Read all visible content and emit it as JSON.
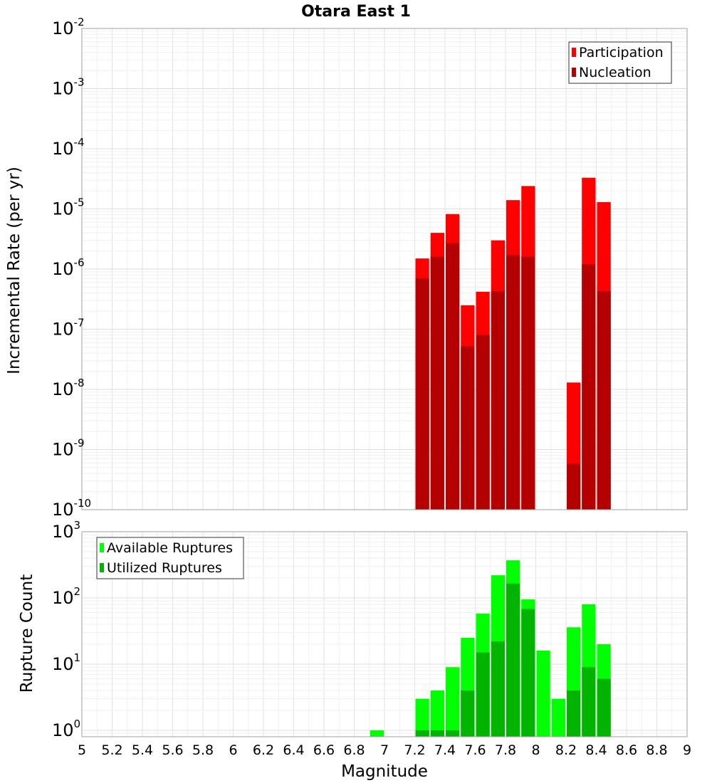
{
  "title": "Otara East 1",
  "chart_data": [
    {
      "type": "bar",
      "title": "Otara East 1",
      "xlabel": "Magnitude",
      "ylabel": "Incremental Rate (per yr)",
      "yscale": "log",
      "xlim": [
        5,
        9
      ],
      "ylim": [
        1e-10,
        0.01
      ],
      "xticks": [
        "5",
        "5.2",
        "5.4",
        "5.6",
        "5.8",
        "6",
        "6.2",
        "6.4",
        "6.6",
        "6.8",
        "7",
        "7.2",
        "7.4",
        "7.6",
        "7.8",
        "8",
        "8.2",
        "8.4",
        "8.6",
        "8.8",
        "9"
      ],
      "yticks": [
        {
          "base": "10",
          "exp": "-10"
        },
        {
          "base": "10",
          "exp": "-9"
        },
        {
          "base": "10",
          "exp": "-8"
        },
        {
          "base": "10",
          "exp": "-7"
        },
        {
          "base": "10",
          "exp": "-6"
        },
        {
          "base": "10",
          "exp": "-5"
        },
        {
          "base": "10",
          "exp": "-4"
        },
        {
          "base": "10",
          "exp": "-3"
        },
        {
          "base": "10",
          "exp": "-2"
        }
      ],
      "grid": true,
      "legend_position": "top-right",
      "bin_width": 0.1,
      "x": [
        7.25,
        7.35,
        7.45,
        7.55,
        7.65,
        7.75,
        7.85,
        7.95,
        8.25,
        8.35,
        8.45
      ],
      "series": [
        {
          "name": "Participation",
          "color": "#ff0000",
          "values": [
            1.5e-06,
            4e-06,
            8.2e-06,
            2.5e-07,
            4.2e-07,
            3e-06,
            1.4e-05,
            2.4e-05,
            1.3e-08,
            3.3e-05,
            1.3e-05
          ]
        },
        {
          "name": "Nucleation",
          "color": "#b40000",
          "values": [
            7e-07,
            1.6e-06,
            2.7e-06,
            5.2e-08,
            8e-08,
            4.3e-07,
            1.7e-06,
            1.6e-06,
            5.8e-10,
            1.2e-06,
            4.3e-07
          ]
        }
      ]
    },
    {
      "type": "bar",
      "xlabel": "Magnitude",
      "ylabel": "Rupture Count",
      "yscale": "log",
      "xlim": [
        5,
        9
      ],
      "ylim": [
        0.8,
        1000
      ],
      "yticks": [
        {
          "base": "10",
          "exp": "0"
        },
        {
          "base": "10",
          "exp": "1"
        },
        {
          "base": "10",
          "exp": "2"
        },
        {
          "base": "10",
          "exp": "3"
        }
      ],
      "grid": true,
      "legend_position": "top-left",
      "bin_width": 0.1,
      "x": [
        6.95,
        7.25,
        7.35,
        7.45,
        7.55,
        7.65,
        7.75,
        7.85,
        7.95,
        8.05,
        8.15,
        8.25,
        8.35,
        8.45
      ],
      "series": [
        {
          "name": "Available Ruptures",
          "color": "#00ff00",
          "values": [
            1,
            3,
            4,
            9,
            25,
            58,
            220,
            370,
            95,
            16,
            3,
            36,
            80,
            20
          ]
        },
        {
          "name": "Utilized Ruptures",
          "color": "#00b400",
          "values": [
            null,
            1,
            1,
            1,
            4,
            15,
            22,
            165,
            68,
            null,
            null,
            4,
            9,
            6
          ]
        }
      ]
    }
  ]
}
